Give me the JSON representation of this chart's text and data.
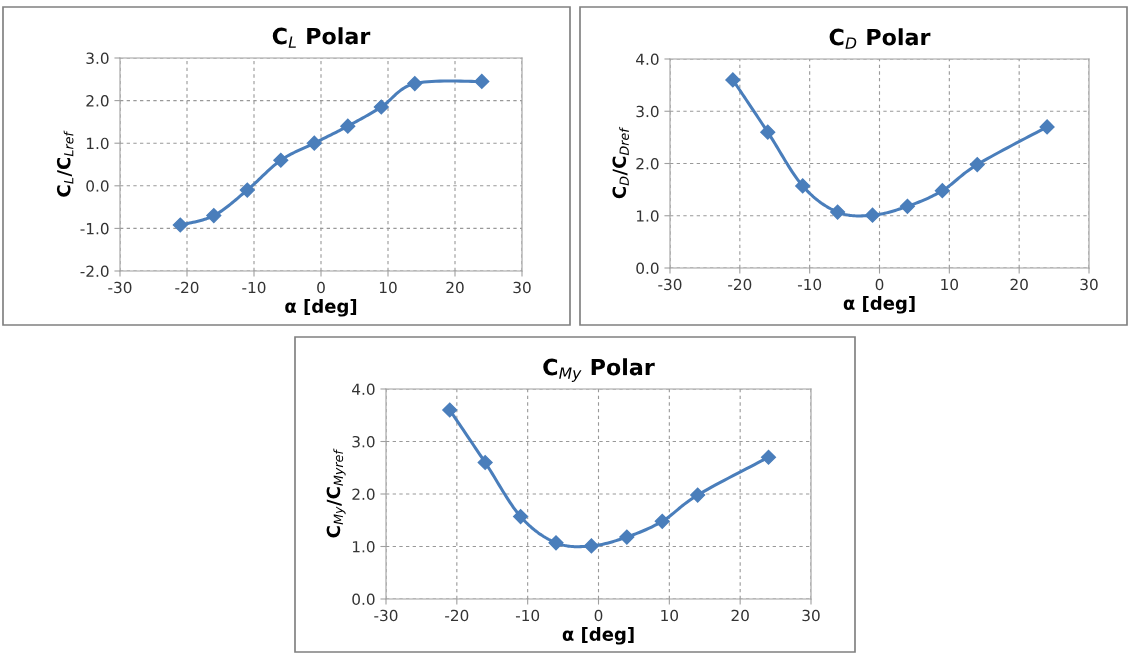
{
  "chart_data": [
    {
      "type": "line",
      "title": "C$_{L}$ Polar",
      "xlabel": "α [deg]",
      "ylabel": "C$_{L}$/C$_{Lref}$",
      "x": [
        -21,
        -16,
        -11,
        -6,
        -1,
        4,
        9,
        14,
        24
      ],
      "series": [
        {
          "color": "#4a7ebb",
          "values": [
            -0.92,
            -0.7,
            -0.1,
            0.6,
            1.0,
            1.4,
            1.85,
            2.4,
            2.45
          ]
        }
      ],
      "xlim": [
        -30,
        30
      ],
      "xticks": [
        -30,
        -20,
        -10,
        0,
        10,
        20,
        30
      ],
      "ylim": [
        -2,
        3
      ],
      "yticks": [
        {
          "value": -2,
          "label": "-2.0"
        },
        {
          "value": -1,
          "label": "-1.0"
        },
        {
          "value": 0,
          "label": "0.0"
        },
        {
          "value": 1,
          "label": "1.0"
        },
        {
          "value": 2,
          "label": "2.0"
        },
        {
          "value": 3,
          "label": "3.0"
        }
      ],
      "grid": true,
      "marker": "diamond",
      "line_style": "solid"
    },
    {
      "type": "line",
      "title": "C$_{D}$ Polar",
      "xlabel": "α [deg]",
      "ylabel": "C$_{D}$/C$_{Dref}$",
      "x": [
        -21,
        -16,
        -11,
        -6,
        -1,
        4,
        9,
        14,
        24
      ],
      "series": [
        {
          "color": "#4a7ebb",
          "values": [
            3.6,
            2.6,
            1.57,
            1.07,
            1.01,
            1.18,
            1.48,
            1.98,
            2.7
          ]
        }
      ],
      "xlim": [
        -30,
        30
      ],
      "xticks": [
        -30,
        -20,
        -10,
        0,
        10,
        20,
        30
      ],
      "ylim": [
        0,
        4
      ],
      "yticks": [
        {
          "value": 0,
          "label": "0.0"
        },
        {
          "value": 1,
          "label": "1.0"
        },
        {
          "value": 2,
          "label": "2.0"
        },
        {
          "value": 3,
          "label": "3.0"
        },
        {
          "value": 4,
          "label": "4.0"
        }
      ],
      "grid": true,
      "marker": "diamond",
      "line_style": "solid"
    },
    {
      "type": "line",
      "title": "C$_{My}$ Polar",
      "xlabel": "α [deg]",
      "ylabel": "C$_{My}$/C$_{Myref}$",
      "x": [
        -21,
        -16,
        -11,
        -6,
        -1,
        4,
        9,
        14,
        24
      ],
      "series": [
        {
          "color": "#4a7ebb",
          "values": [
            3.6,
            2.6,
            1.57,
            1.07,
            1.01,
            1.18,
            1.48,
            1.98,
            2.7
          ]
        }
      ],
      "xlim": [
        -30,
        30
      ],
      "xticks": [
        -30,
        -20,
        -10,
        0,
        10,
        20,
        30
      ],
      "ylim": [
        0,
        4
      ],
      "yticks": [
        {
          "value": 0,
          "label": "0.0"
        },
        {
          "value": 1,
          "label": "1.0"
        },
        {
          "value": 2,
          "label": "2.0"
        },
        {
          "value": 3,
          "label": "3.0"
        },
        {
          "value": 4,
          "label": "4.0"
        }
      ],
      "grid": true,
      "marker": "diamond",
      "line_style": "solid"
    }
  ]
}
